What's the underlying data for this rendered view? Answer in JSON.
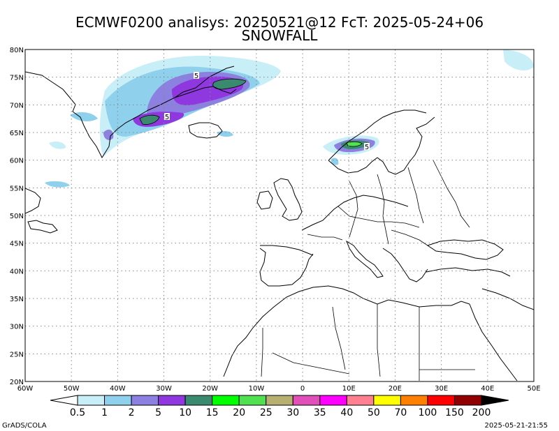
{
  "title": {
    "line1": "ECMWF0200 analisys: 20250521@12 FcT: 2025-05-24+06",
    "line2": "SNOWFALL"
  },
  "map": {
    "lat_labels": [
      "80N",
      "75N",
      "70N",
      "65N",
      "60N",
      "55N",
      "50N",
      "45N",
      "40N",
      "35N",
      "30N",
      "25N",
      "20N"
    ],
    "lon_labels": [
      "60W",
      "50W",
      "40W",
      "30W",
      "20W",
      "10W",
      "0",
      "10E",
      "20E",
      "30E",
      "40E",
      "50E"
    ],
    "contour_labels": [
      "5",
      "5",
      "5"
    ]
  },
  "colorbar": {
    "labels": [
      "0.5",
      "1",
      "2",
      "5",
      "10",
      "15",
      "20",
      "25",
      "30",
      "35",
      "40",
      "50",
      "70",
      "100",
      "150",
      "200"
    ],
    "colors": [
      "#c8eef8",
      "#8fd0ec",
      "#8c80e0",
      "#9038e0",
      "#3a8a70",
      "#00ff00",
      "#50e050",
      "#b8b070",
      "#e050b8",
      "#ff00ff",
      "#ff8090",
      "#ffff00",
      "#ff8000",
      "#ff0000",
      "#900000"
    ]
  },
  "footer": {
    "left": "GrADS/COLA",
    "right": "2025-05-21-21:55"
  }
}
